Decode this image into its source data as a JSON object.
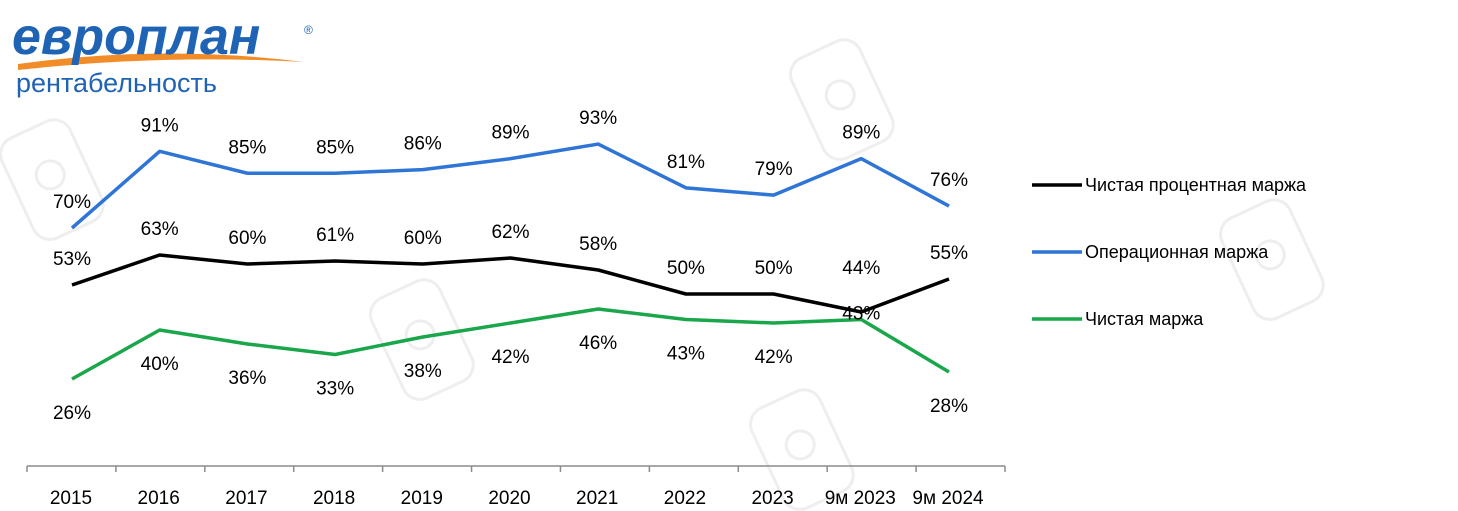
{
  "brand": {
    "logo_text": "европлан",
    "subtitle": "рентабельность",
    "logo_color": "#1f64b4",
    "swoosh_color": "#f28c28"
  },
  "chart_data": {
    "type": "line",
    "categories": [
      "2015",
      "2016",
      "2017",
      "2018",
      "2019",
      "2020",
      "2021",
      "2022",
      "2023",
      "9м 2023",
      "9м 2024"
    ],
    "series": [
      {
        "name": "Чистая процентная маржа",
        "color": "#000000",
        "values": [
          53,
          63,
          60,
          61,
          60,
          62,
          58,
          50,
          50,
          44,
          55
        ]
      },
      {
        "name": "Операционная маржа",
        "color": "#2e75d6",
        "values": [
          70,
          91,
          85,
          85,
          86,
          89,
          93,
          81,
          79,
          89,
          76
        ]
      },
      {
        "name": "Чистая маржа",
        "color": "#1aa64a",
        "values": [
          26,
          40,
          36,
          33,
          38,
          42,
          46,
          43,
          42,
          43,
          28
        ]
      }
    ],
    "value_suffix": "%",
    "legend_position": "right",
    "grid": false
  }
}
